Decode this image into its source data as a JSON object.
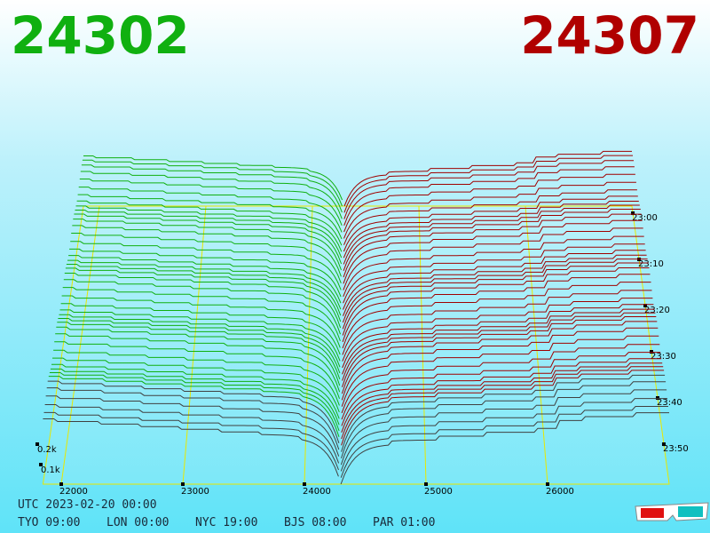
{
  "header": {
    "bid": "24302",
    "ask": "24307"
  },
  "price_axis": [
    "22000",
    "23000",
    "24000",
    "25000",
    "26000"
  ],
  "time_axis": [
    "23:00",
    "23:10",
    "23:20",
    "23:30",
    "23:40",
    "23:50"
  ],
  "depth_axis": [
    "0.2k",
    "0.1k"
  ],
  "footer": {
    "utc": "UTC 2023-02-20 00:00",
    "clocks": [
      "TYO 09:00",
      "LON 00:00",
      "NYC 19:00",
      "BJS 08:00",
      "PAR 01:00"
    ]
  }
}
